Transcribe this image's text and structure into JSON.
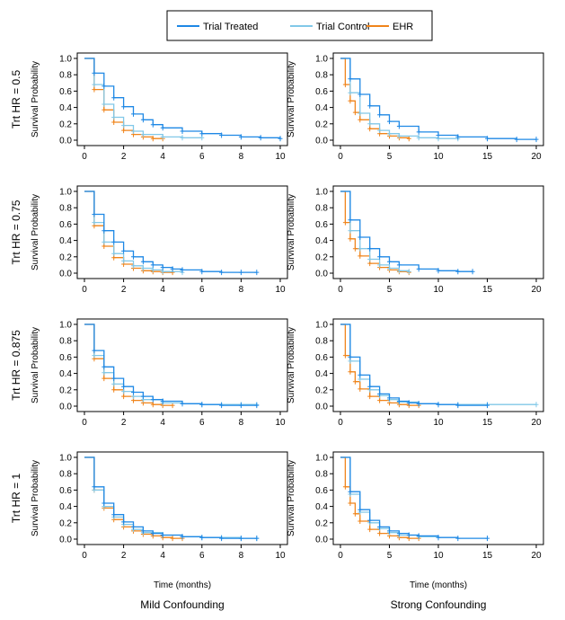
{
  "legend": {
    "items": [
      {
        "label": "Trial Treated",
        "color": "#1e88e5"
      },
      {
        "label": "Trial Control",
        "color": "#81c8e8"
      },
      {
        "label": "EHR",
        "color": "#f0841a"
      }
    ]
  },
  "rows": [
    "Trt HR = 0.5",
    "Trt HR = 0.75",
    "Trt HR = 0.875",
    "Trt HR = 1"
  ],
  "columns": [
    "Mild Confounding",
    "Strong Confounding"
  ],
  "ylabel": "Survival Probability",
  "xlabel": "Time (months)",
  "axes": {
    "left": {
      "xlim": [
        0,
        10
      ],
      "xticks": [
        "0",
        "2",
        "4",
        "6",
        "8",
        "10"
      ]
    },
    "right": {
      "xlim": [
        0,
        20
      ],
      "xticks": [
        "0",
        "5",
        "10",
        "15",
        "20"
      ]
    },
    "ylim": [
      0,
      1
    ],
    "yticks": [
      "0.0",
      "0.2",
      "0.4",
      "0.6",
      "0.8",
      "1.0"
    ]
  },
  "chart_data": [
    {
      "type": "line",
      "row": "Trt HR = 0.5",
      "column": "Mild Confounding",
      "xlim": [
        0,
        10
      ],
      "ylim": [
        0,
        1
      ],
      "grid": false,
      "series": [
        {
          "name": "Trial Treated",
          "x": [
            0,
            0.5,
            1,
            1.5,
            2,
            2.5,
            3,
            3.5,
            4,
            5,
            6,
            7,
            8,
            9,
            10
          ],
          "values": [
            1,
            0.82,
            0.66,
            0.52,
            0.41,
            0.32,
            0.25,
            0.19,
            0.15,
            0.11,
            0.08,
            0.06,
            0.04,
            0.03,
            0.02
          ]
        },
        {
          "name": "Trial Control",
          "x": [
            0,
            0.5,
            1,
            1.5,
            2,
            2.5,
            3,
            4,
            5,
            6
          ],
          "values": [
            1,
            0.68,
            0.44,
            0.28,
            0.18,
            0.11,
            0.07,
            0.04,
            0.03,
            0.03
          ]
        },
        {
          "name": "EHR",
          "x": [
            0,
            0.5,
            1,
            1.5,
            2,
            2.5,
            3,
            3.5,
            4
          ],
          "values": [
            1,
            0.62,
            0.37,
            0.22,
            0.12,
            0.07,
            0.04,
            0.02,
            0.02
          ]
        }
      ]
    },
    {
      "type": "line",
      "row": "Trt HR = 0.5",
      "column": "Strong Confounding",
      "xlim": [
        0,
        20
      ],
      "ylim": [
        0,
        1
      ],
      "grid": false,
      "series": [
        {
          "name": "Trial Treated",
          "x": [
            0,
            1,
            2,
            3,
            4,
            5,
            6,
            8,
            10,
            12,
            15,
            18,
            20
          ],
          "values": [
            1,
            0.75,
            0.56,
            0.42,
            0.31,
            0.23,
            0.17,
            0.1,
            0.06,
            0.04,
            0.02,
            0.01,
            0.01
          ]
        },
        {
          "name": "Trial Control",
          "x": [
            0,
            1,
            2,
            3,
            4,
            5,
            6,
            8,
            10,
            12
          ],
          "values": [
            1,
            0.58,
            0.33,
            0.2,
            0.12,
            0.08,
            0.05,
            0.03,
            0.02,
            0.02
          ]
        },
        {
          "name": "EHR",
          "x": [
            0,
            0.5,
            1,
            1.5,
            2,
            3,
            4,
            5,
            6,
            7
          ],
          "values": [
            1,
            0.68,
            0.48,
            0.34,
            0.25,
            0.14,
            0.08,
            0.05,
            0.03,
            0.02
          ]
        }
      ]
    },
    {
      "type": "line",
      "row": "Trt HR = 0.75",
      "column": "Mild Confounding",
      "xlim": [
        0,
        10
      ],
      "ylim": [
        0,
        1
      ],
      "grid": false,
      "series": [
        {
          "name": "Trial Treated",
          "x": [
            0,
            0.5,
            1,
            1.5,
            2,
            2.5,
            3,
            3.5,
            4,
            4.5,
            5,
            6,
            7,
            8,
            8.8
          ],
          "values": [
            1,
            0.72,
            0.52,
            0.38,
            0.27,
            0.2,
            0.14,
            0.1,
            0.07,
            0.05,
            0.04,
            0.02,
            0.01,
            0.01,
            0.01
          ]
        },
        {
          "name": "Trial Control",
          "x": [
            0,
            0.5,
            1,
            1.5,
            2,
            2.5,
            3,
            3.5,
            4,
            5
          ],
          "values": [
            1,
            0.62,
            0.38,
            0.24,
            0.15,
            0.09,
            0.06,
            0.04,
            0.02,
            0.01
          ]
        },
        {
          "name": "EHR",
          "x": [
            0,
            0.5,
            1,
            1.5,
            2,
            2.5,
            3,
            3.5,
            4,
            4.5
          ],
          "values": [
            1,
            0.58,
            0.33,
            0.19,
            0.11,
            0.06,
            0.03,
            0.02,
            0.01,
            0.01
          ]
        }
      ]
    },
    {
      "type": "line",
      "row": "Trt HR = 0.75",
      "column": "Strong Confounding",
      "xlim": [
        0,
        20
      ],
      "ylim": [
        0,
        1
      ],
      "grid": false,
      "series": [
        {
          "name": "Trial Treated",
          "x": [
            0,
            1,
            2,
            3,
            4,
            5,
            6,
            8,
            10,
            12,
            13.5
          ],
          "values": [
            1,
            0.65,
            0.44,
            0.3,
            0.2,
            0.14,
            0.1,
            0.05,
            0.03,
            0.02,
            0.02
          ]
        },
        {
          "name": "Trial Control",
          "x": [
            0,
            1,
            2,
            3,
            4,
            5,
            6,
            7
          ],
          "values": [
            1,
            0.52,
            0.3,
            0.17,
            0.1,
            0.06,
            0.03,
            0.02
          ]
        },
        {
          "name": "EHR",
          "x": [
            0,
            0.5,
            1,
            1.5,
            2,
            3,
            4,
            5,
            6,
            7
          ],
          "values": [
            1,
            0.62,
            0.42,
            0.3,
            0.21,
            0.12,
            0.07,
            0.04,
            0.02,
            0.01
          ]
        }
      ]
    },
    {
      "type": "line",
      "row": "Trt HR = 0.875",
      "column": "Mild Confounding",
      "xlim": [
        0,
        10
      ],
      "ylim": [
        0,
        1
      ],
      "grid": false,
      "series": [
        {
          "name": "Trial Treated",
          "x": [
            0,
            0.5,
            1,
            1.5,
            2,
            2.5,
            3,
            3.5,
            4,
            5,
            6,
            7,
            8,
            8.8
          ],
          "values": [
            1,
            0.68,
            0.48,
            0.34,
            0.24,
            0.17,
            0.12,
            0.08,
            0.06,
            0.03,
            0.02,
            0.01,
            0.01,
            0.01
          ]
        },
        {
          "name": "Trial Control",
          "x": [
            0,
            0.5,
            1,
            1.5,
            2,
            2.5,
            3,
            4,
            5,
            6,
            7,
            8,
            8.8
          ],
          "values": [
            1,
            0.62,
            0.41,
            0.27,
            0.18,
            0.12,
            0.08,
            0.04,
            0.03,
            0.02,
            0.02,
            0.02,
            0.02
          ]
        },
        {
          "name": "EHR",
          "x": [
            0,
            0.5,
            1,
            1.5,
            2,
            2.5,
            3,
            3.5,
            4,
            4.5
          ],
          "values": [
            1,
            0.58,
            0.34,
            0.2,
            0.12,
            0.07,
            0.04,
            0.02,
            0.01,
            0.01
          ]
        }
      ]
    },
    {
      "type": "line",
      "row": "Trt HR = 0.875",
      "column": "Strong Confounding",
      "xlim": [
        0,
        20
      ],
      "ylim": [
        0,
        1
      ],
      "grid": false,
      "series": [
        {
          "name": "Trial Treated",
          "x": [
            0,
            1,
            2,
            3,
            4,
            5,
            6,
            7,
            8,
            10,
            12,
            15
          ],
          "values": [
            1,
            0.6,
            0.38,
            0.24,
            0.15,
            0.1,
            0.06,
            0.04,
            0.03,
            0.02,
            0.01,
            0.01
          ]
        },
        {
          "name": "Trial Control",
          "x": [
            0,
            1,
            2,
            3,
            4,
            5,
            6,
            8,
            10,
            12,
            15,
            20
          ],
          "values": [
            1,
            0.55,
            0.33,
            0.2,
            0.13,
            0.08,
            0.05,
            0.03,
            0.02,
            0.02,
            0.02,
            0.02
          ]
        },
        {
          "name": "EHR",
          "x": [
            0,
            0.5,
            1,
            1.5,
            2,
            3,
            4,
            5,
            6,
            7,
            8
          ],
          "values": [
            1,
            0.62,
            0.42,
            0.3,
            0.21,
            0.12,
            0.07,
            0.04,
            0.02,
            0.01,
            0.01
          ]
        }
      ]
    },
    {
      "type": "line",
      "row": "Trt HR = 1",
      "column": "Mild Confounding",
      "xlim": [
        0,
        10
      ],
      "ylim": [
        0,
        1
      ],
      "grid": false,
      "series": [
        {
          "name": "Trial Treated",
          "x": [
            0,
            0.5,
            1,
            1.5,
            2,
            2.5,
            3,
            3.5,
            4,
            5,
            6,
            7,
            8,
            8.8
          ],
          "values": [
            1,
            0.64,
            0.44,
            0.3,
            0.21,
            0.15,
            0.1,
            0.07,
            0.05,
            0.03,
            0.02,
            0.01,
            0.01,
            0.01
          ]
        },
        {
          "name": "Trial Control",
          "x": [
            0,
            0.5,
            1,
            1.5,
            2,
            2.5,
            3,
            4,
            5,
            6,
            7,
            8,
            8.8
          ],
          "values": [
            1,
            0.6,
            0.4,
            0.27,
            0.18,
            0.12,
            0.08,
            0.05,
            0.03,
            0.02,
            0.02,
            0.01,
            0.01
          ]
        },
        {
          "name": "EHR",
          "x": [
            0,
            0.5,
            1,
            1.5,
            2,
            2.5,
            3,
            3.5,
            4,
            4.5,
            5
          ],
          "values": [
            1,
            0.6,
            0.38,
            0.24,
            0.15,
            0.1,
            0.06,
            0.04,
            0.02,
            0.01,
            0.01
          ]
        }
      ]
    },
    {
      "type": "line",
      "row": "Trt HR = 1",
      "column": "Strong Confounding",
      "xlim": [
        0,
        20
      ],
      "ylim": [
        0,
        1
      ],
      "grid": false,
      "series": [
        {
          "name": "Trial Treated",
          "x": [
            0,
            1,
            2,
            3,
            4,
            5,
            6,
            7,
            8,
            10,
            12,
            15
          ],
          "values": [
            1,
            0.58,
            0.36,
            0.23,
            0.15,
            0.1,
            0.07,
            0.05,
            0.04,
            0.02,
            0.01,
            0.01
          ]
        },
        {
          "name": "Trial Control",
          "x": [
            0,
            1,
            2,
            3,
            4,
            5,
            6,
            8,
            10
          ],
          "values": [
            1,
            0.55,
            0.33,
            0.2,
            0.13,
            0.08,
            0.05,
            0.03,
            0.02
          ]
        },
        {
          "name": "EHR",
          "x": [
            0,
            0.5,
            1,
            1.5,
            2,
            3,
            4,
            5,
            6,
            7,
            8
          ],
          "values": [
            1,
            0.64,
            0.44,
            0.31,
            0.22,
            0.12,
            0.07,
            0.04,
            0.02,
            0.01,
            0.01
          ]
        }
      ]
    }
  ]
}
